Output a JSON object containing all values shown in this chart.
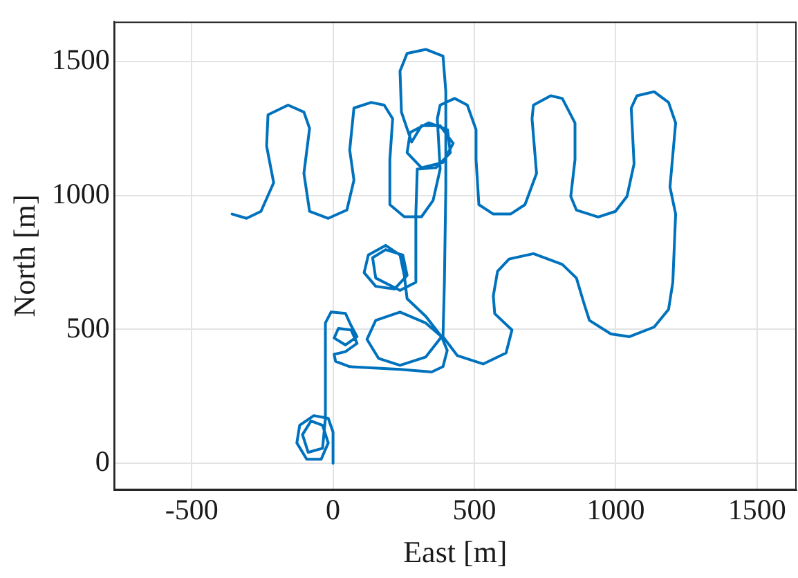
{
  "chart_data": {
    "type": "line",
    "xlabel": "East [m]",
    "ylabel": "North [m]",
    "xlim": [
      -775,
      1640
    ],
    "ylim": [
      -100,
      1650
    ],
    "xticks": [
      -500,
      0,
      500,
      1000,
      1500
    ],
    "yticks": [
      0,
      500,
      1000,
      1500
    ],
    "grid": true,
    "legend": false,
    "marker": "none",
    "line_style": "solid",
    "series": [
      {
        "color": "#0072bd",
        "x": [
          0,
          0,
          -17,
          -68,
          -118,
          -128,
          -93,
          -42,
          -17,
          -37,
          -78,
          -108,
          -88,
          -37,
          -27,
          -27,
          -7,
          44,
          64,
          85,
          44,
          4,
          19,
          64,
          85,
          44,
          4,
          9,
          59,
          237,
          349,
          389,
          404,
          384,
          328,
          237,
          151,
          120,
          161,
          237,
          328,
          384,
          328,
          262,
          252,
          237,
          186,
          125,
          110,
          151,
          217,
          262,
          247,
          186,
          140,
          151,
          237,
          293,
          293,
          298,
          364,
          415,
          405,
          339,
          273,
          262,
          313,
          389,
          425,
          379,
          313,
          278,
          242,
          237,
          262,
          328,
          389,
          399,
          399,
          394,
          389,
          440,
          531,
          612,
          633,
          572,
          567,
          582,
          623,
          709,
          811,
          861,
          887,
          907,
          983,
          1049,
          1136,
          1187,
          1202,
          1212,
          1192,
          1212,
          1187,
          1136,
          1075,
          1055,
          1065,
          1040,
          999,
          938,
          861,
          841,
          856,
          856,
          811,
          770,
          709,
          704,
          720,
          679,
          628,
          567,
          516,
          506,
          506,
          475,
          430,
          379,
          369,
          379,
          354,
          313,
          252,
          201,
          201,
          211,
          181,
          135,
          74,
          59,
          74,
          49,
          -17,
          -83,
          -103,
          -83,
          -103,
          -159,
          -230,
          -235,
          -210,
          -255,
          -306,
          -357
        ],
        "values": [
          0,
          117,
          168,
          178,
          142,
          76,
          15,
          15,
          76,
          142,
          158,
          107,
          41,
          56,
          168,
          524,
          565,
          560,
          514,
          473,
          442,
          468,
          504,
          498,
          448,
          417,
          407,
          381,
          361,
          351,
          341,
          361,
          422,
          473,
          524,
          565,
          534,
          463,
          392,
          366,
          397,
          473,
          549,
          615,
          702,
          778,
          814,
          778,
          712,
          661,
          651,
          702,
          778,
          798,
          768,
          692,
          646,
          676,
          931,
          1099,
          1104,
          1160,
          1246,
          1272,
          1236,
          1160,
          1104,
          1124,
          1195,
          1261,
          1261,
          1200,
          1312,
          1465,
          1531,
          1546,
          1521,
          1389,
          1032,
          676,
          473,
          402,
          371,
          412,
          498,
          559,
          625,
          717,
          763,
          783,
          743,
          692,
          600,
          534,
          483,
          473,
          509,
          575,
          676,
          931,
          1032,
          1271,
          1348,
          1388,
          1373,
          1327,
          1119,
          997,
          941,
          920,
          946,
          997,
          1134,
          1271,
          1363,
          1373,
          1338,
          1287,
          1083,
          966,
          931,
          931,
          966,
          1134,
          1246,
          1338,
          1363,
          1338,
          1287,
          1099,
          982,
          921,
          921,
          966,
          1134,
          1287,
          1338,
          1348,
          1327,
          1170,
          1058,
          946,
          915,
          941,
          1083,
          1251,
          1312,
          1338,
          1302,
          1185,
          1048,
          941,
          915,
          931
        ]
      }
    ]
  }
}
